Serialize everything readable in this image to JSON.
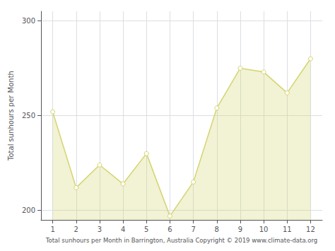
{
  "chart_data": {
    "type": "line",
    "x": [
      1,
      2,
      3,
      4,
      5,
      6,
      7,
      8,
      9,
      10,
      11,
      12
    ],
    "values": [
      252,
      212,
      224,
      214,
      230,
      197,
      215,
      254,
      275,
      273,
      262,
      280
    ],
    "color": "#D4D470",
    "marker": "circle",
    "xlim": [
      0.5,
      12.5
    ],
    "xticks": [
      1,
      2,
      3,
      4,
      5,
      6,
      7,
      8,
      9,
      10,
      11,
      12
    ],
    "ylim": [
      195,
      305
    ],
    "yticks": [
      200,
      250,
      300
    ],
    "xlabel": "Total sunhours per Month in Barrington, Australia Copyright © 2019 www.climate-data.org",
    "ylabel": "Total sunhours per Month",
    "grid": true
  }
}
